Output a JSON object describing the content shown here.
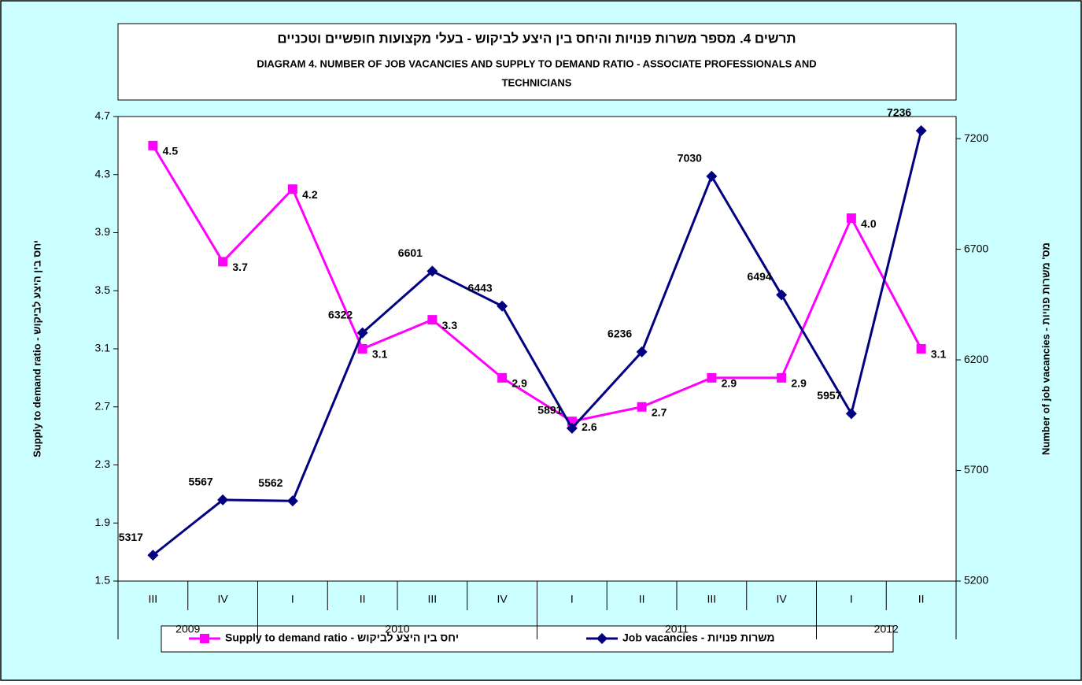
{
  "chart_data": {
    "type": "line",
    "title": "תרשים 4. מספר משרות פנויות והיחס בין היצע לביקוש - בעלי מקצועות חופשיים וטכניים",
    "subtitle": "DIAGRAM 4. NUMBER OF JOB VACANCIES AND SUPPLY TO DEMAND RATIO - ASSOCIATE PROFESSIONALS AND",
    "subtitle_line2": "TECHNICIANS",
    "y_label": "Supply to demand ratio - יחס בין היצע לביקוש",
    "y2_label": "Number of job vacancies - מס' משרות פנויות",
    "categories": [
      "III",
      "IV",
      "I",
      "II",
      "III",
      "IV",
      "I",
      "II",
      "III",
      "IV",
      "I",
      "II"
    ],
    "year_groups": [
      {
        "label": "2009",
        "span": 2
      },
      {
        "label": "2010",
        "span": 4
      },
      {
        "label": "2011",
        "span": 4
      },
      {
        "label": "2012",
        "span": 2
      }
    ],
    "series": [
      {
        "name": "Supply to demand ratio - יחס בין היצע לביקוש",
        "color": "#ff00ff",
        "marker": "square",
        "values": [
          4.5,
          3.7,
          4.2,
          3.1,
          3.3,
          2.9,
          2.6,
          2.7,
          2.9,
          2.9,
          4.0,
          3.1
        ],
        "value_labels": [
          "4.5",
          "3.7",
          "4.2",
          "3.1",
          "3.3",
          "2.9",
          "2.6",
          "2.7",
          "2.9",
          "2.9",
          "4.0",
          "3.1"
        ]
      },
      {
        "name": "Job vacancies - משרות פנויות",
        "color": "#000080",
        "marker": "diamond",
        "axis": "y2",
        "values": [
          5317,
          5567,
          5562,
          6322,
          6601,
          6443,
          5891,
          6236,
          7030,
          6494,
          5957,
          7236
        ]
      }
    ],
    "ylim": [
      1.5,
      4.7
    ],
    "yticks": [
      1.5,
      1.9,
      2.3,
      2.7,
      3.1,
      3.5,
      3.9,
      4.3,
      4.7
    ],
    "y2lim": [
      5200,
      7300
    ],
    "y2ticks": [
      5200,
      5700,
      6200,
      6700,
      7200
    ],
    "background": "#ccffff"
  }
}
